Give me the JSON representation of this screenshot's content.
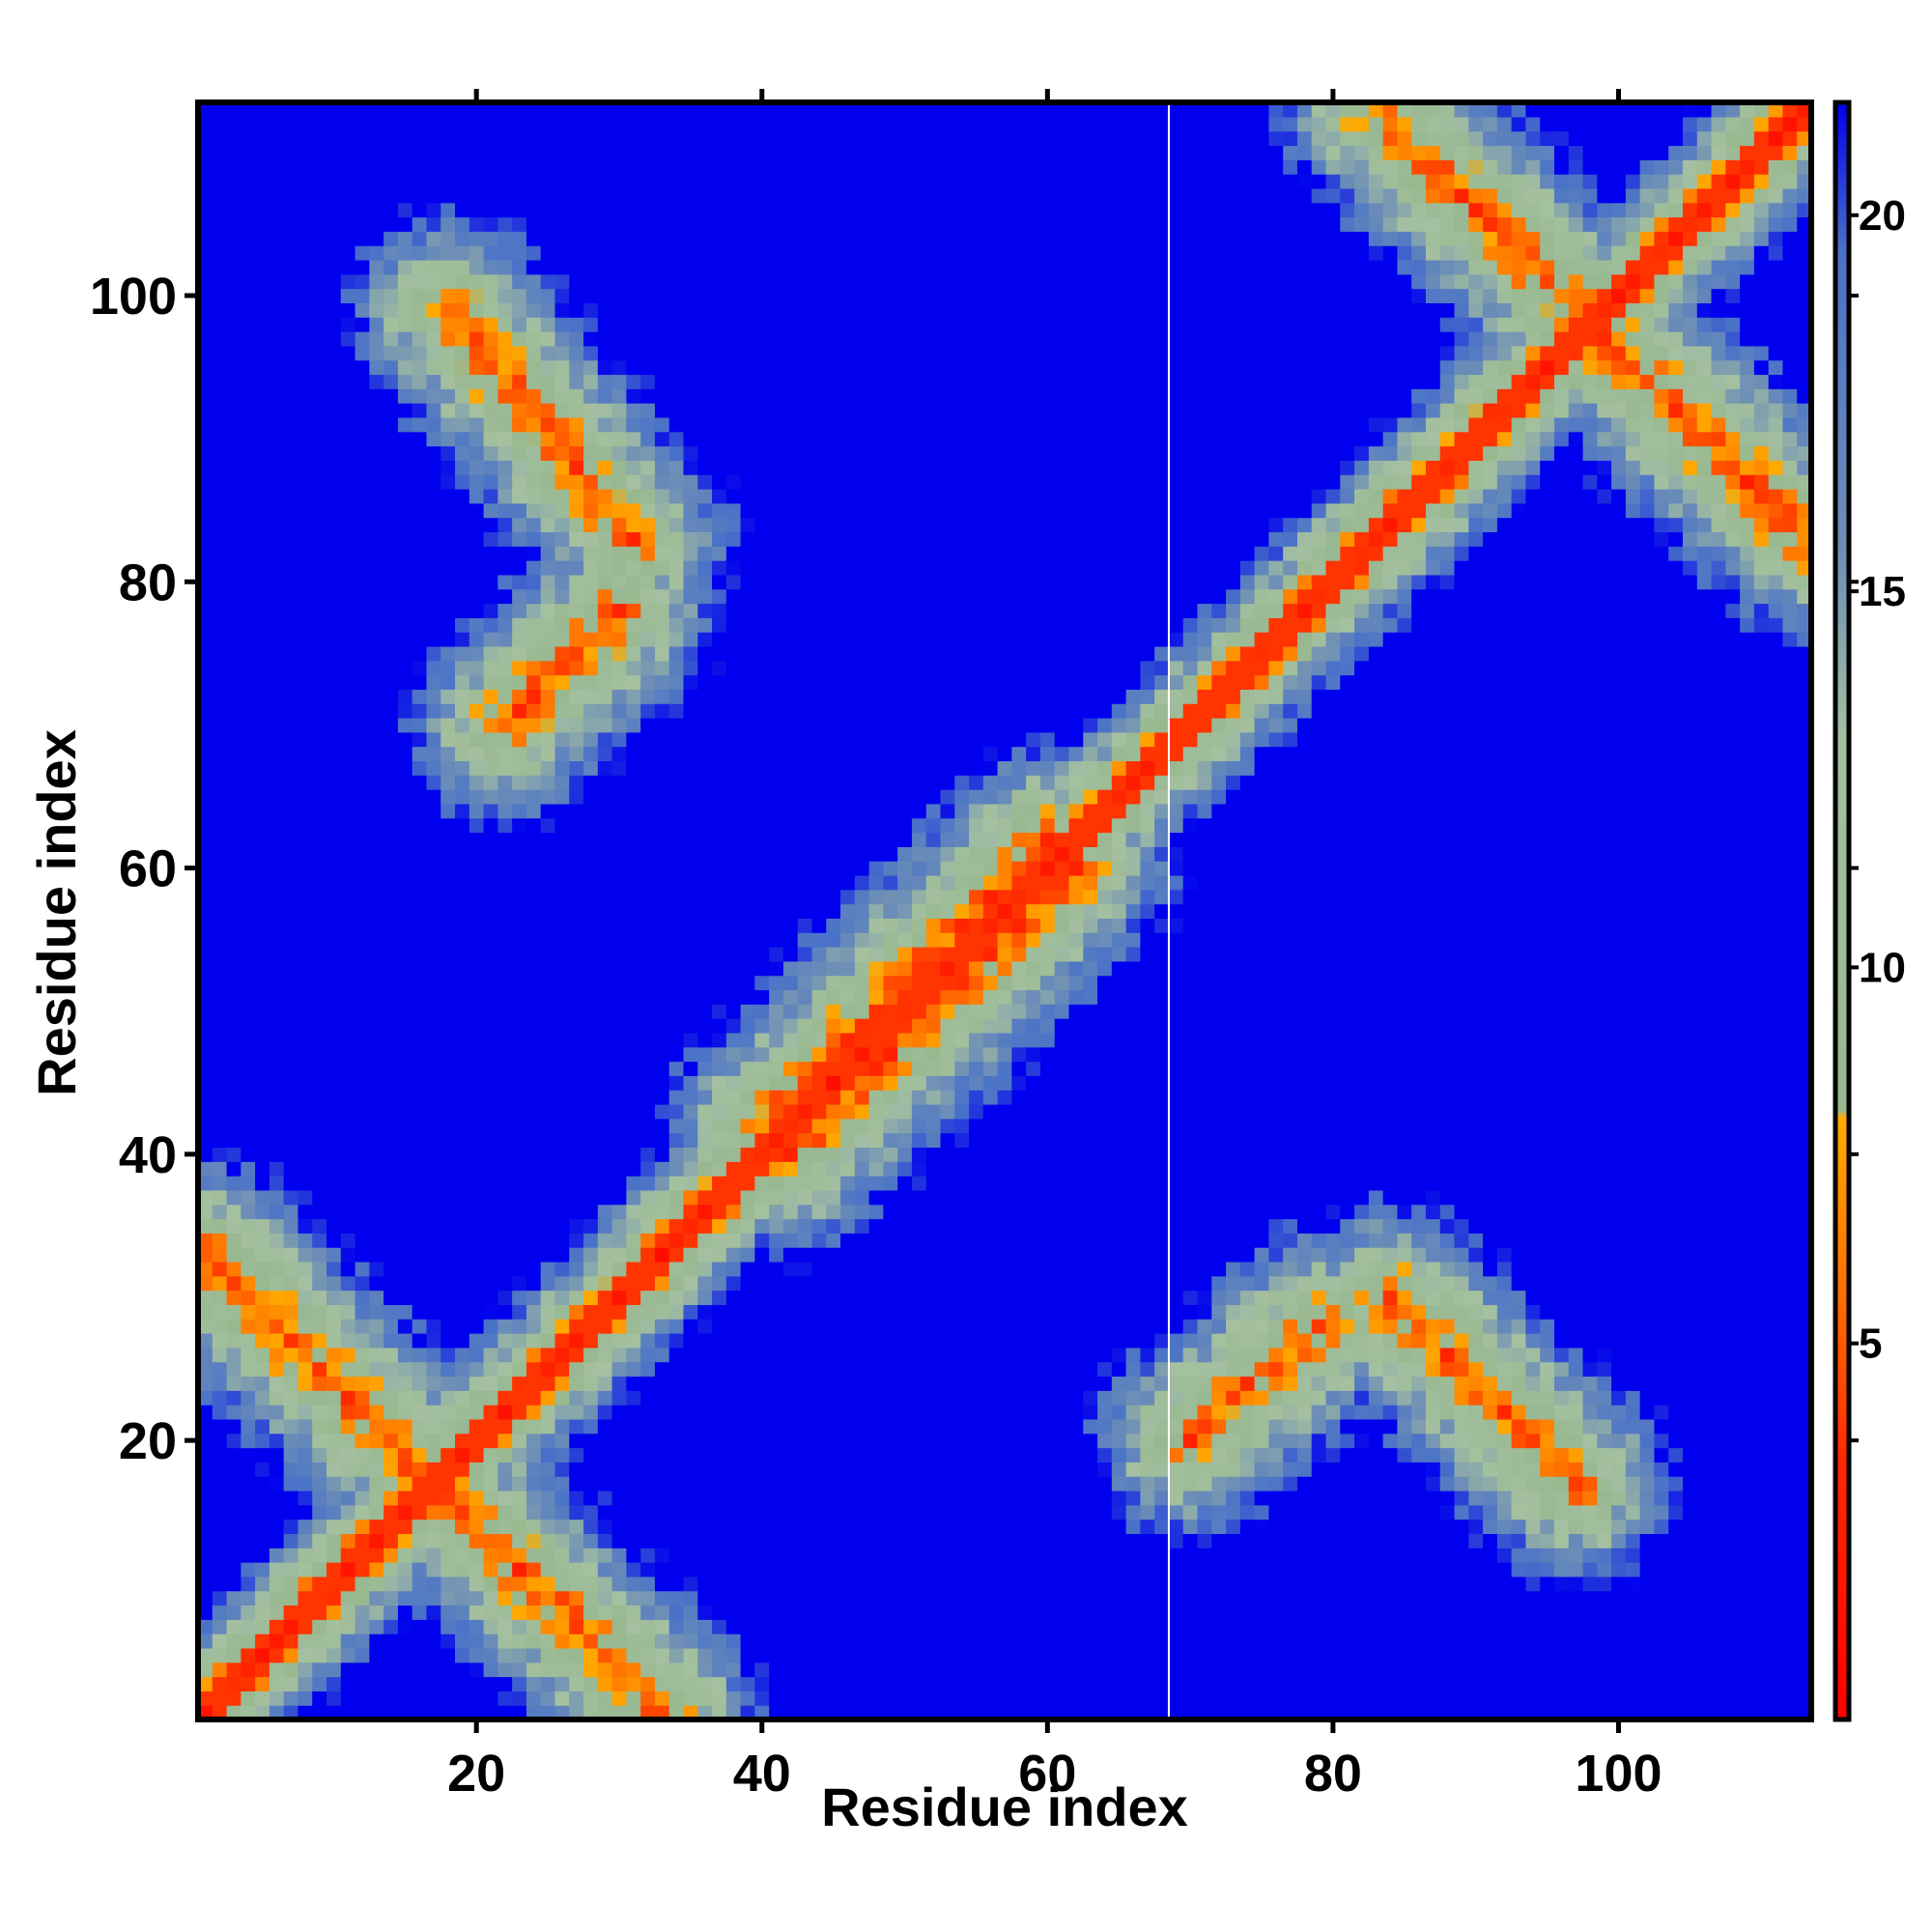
{
  "chart_data": {
    "type": "heatmap",
    "title": "",
    "xlabel": "Residue index",
    "ylabel": "Residue index",
    "n_residues": 113,
    "xlim": [
      1,
      113
    ],
    "ylim": [
      1,
      113
    ],
    "x_ticks": [
      20,
      40,
      60,
      80,
      100
    ],
    "y_ticks": [
      20,
      40,
      60,
      80,
      100
    ],
    "colorbar": {
      "ticks": [
        5,
        10,
        15,
        20
      ],
      "range": [
        0,
        21.5
      ],
      "stops": [
        {
          "value": 0,
          "color": "#ff0000"
        },
        {
          "value": 3.5,
          "color": "#ff2a00"
        },
        {
          "value": 5.5,
          "color": "#ff6a00"
        },
        {
          "value": 8,
          "color": "#ffaa00"
        },
        {
          "value": 8.1,
          "color": "#98b890"
        },
        {
          "value": 13,
          "color": "#a4c0a0"
        },
        {
          "value": 15.5,
          "color": "#6e8fb6"
        },
        {
          "value": 19.5,
          "color": "#4a72c8"
        },
        {
          "value": 21.5,
          "color": "#0000ee"
        }
      ]
    },
    "contact_bands": [
      {
        "kind": "anti-diagonal",
        "x": [
          1,
          33
        ],
        "y": [
          33,
          1
        ]
      },
      {
        "kind": "anti-diagonal",
        "x": [
          18,
          31
        ],
        "y": [
          99,
          83
        ]
      },
      {
        "kind": "anti-diagonal",
        "x": [
          22,
          30
        ],
        "y": [
          70,
          78
        ]
      },
      {
        "kind": "anti-diagonal",
        "x": [
          70,
          79
        ],
        "y": [
          20,
          28
        ]
      },
      {
        "kind": "anti-diagonal",
        "x": [
          84,
          97
        ],
        "y": [
          30,
          17
        ]
      },
      {
        "kind": "anti-diagonal",
        "x": [
          83,
          99
        ],
        "y": [
          113,
          97
        ]
      },
      {
        "kind": "anti-diagonal",
        "x": [
          97,
          113
        ],
        "y": [
          99,
          83
        ]
      },
      {
        "kind": "parallel",
        "x": [
          40,
          60
        ],
        "y": [
          42,
          62
        ]
      },
      {
        "kind": "parallel",
        "x": [
          42,
          62
        ],
        "y": [
          40,
          60
        ]
      }
    ]
  }
}
